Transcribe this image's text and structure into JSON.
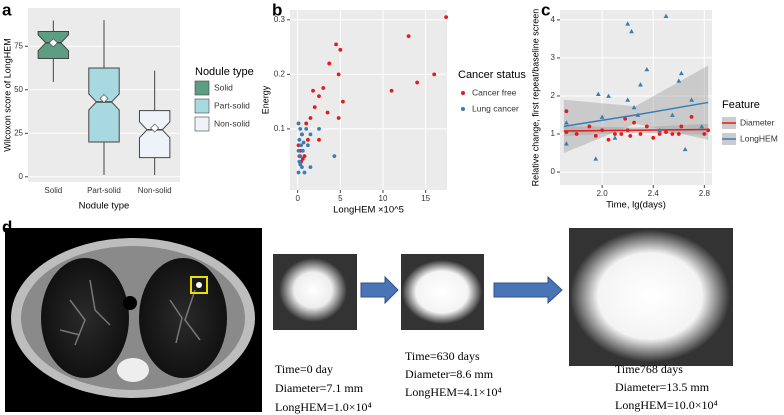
{
  "panel_labels": [
    "a",
    "b",
    "c",
    "d"
  ],
  "chart_data": [
    {
      "type": "box",
      "y_label": "Wilcoxon score of LongHEM",
      "x_label": "Nodule type",
      "legend_title": "Nodule type",
      "categories": [
        "Solid",
        "Part-solid",
        "Non-solid"
      ],
      "colors": [
        "#5c9e84",
        "#a8d8e0",
        "#eef3f9"
      ],
      "boxes": [
        {
          "min": 54.5,
          "q1": 68,
          "median": 77,
          "q3": 83.5,
          "max": 89.8,
          "mean": 77
        },
        {
          "min": 1,
          "q1": 20,
          "median": 43,
          "q3": 62.5,
          "max": 90,
          "mean": 45
        },
        {
          "min": 1,
          "q1": 11,
          "median": 27,
          "q3": 38,
          "max": 61,
          "mean": 28
        }
      ],
      "ylim": [
        -3,
        97
      ],
      "yticks": [
        0,
        25,
        50,
        75
      ],
      "grid": true
    },
    {
      "type": "scatter",
      "y_label": "Energy",
      "x_label": "LongHEM ×10^5",
      "legend_title": "Cancer status",
      "xlim": [
        -0.9,
        17.5
      ],
      "xticks": [
        0,
        5,
        10,
        15
      ],
      "ylim": [
        -0.012,
        0.318
      ],
      "yticks": [
        0.1,
        0.2,
        0.3
      ],
      "grid": true,
      "series": [
        {
          "name": "Cancer free",
          "color": "#e41a1c",
          "marker": "circle",
          "x": [
            17.4,
            13,
            16,
            14,
            11,
            4.5,
            5,
            3.7,
            4.8,
            2.5,
            3,
            1.8,
            2,
            3.5,
            5.3,
            4.8,
            1.5,
            1,
            0.5,
            0.3,
            0.2,
            0.8,
            0.4,
            1.2,
            2.5,
            0.1,
            0.6
          ],
          "values": [
            0.305,
            0.27,
            0.2,
            0.185,
            0.17,
            0.255,
            0.245,
            0.22,
            0.2,
            0.16,
            0.175,
            0.17,
            0.14,
            0.13,
            0.15,
            0.12,
            0.12,
            0.11,
            0.09,
            0.06,
            0.05,
            0.05,
            0.04,
            0.08,
            0.08,
            0.07,
            0.045
          ]
        },
        {
          "name": "Lung cancer",
          "color": "#377eb8",
          "marker": "circle",
          "x": [
            0.1,
            0.3,
            0.5,
            1,
            1.5,
            2.5,
            4.3,
            0.2,
            0.4,
            0.1,
            0.3,
            0.6,
            0.2,
            0.5,
            0.1,
            1.5,
            0.8,
            0.3,
            1.2,
            0.7
          ],
          "values": [
            0.11,
            0.1,
            0.09,
            0.1,
            0.09,
            0.1,
            0.05,
            0.08,
            0.07,
            0.06,
            0.05,
            0.06,
            0.04,
            0.03,
            0.02,
            0.03,
            0.02,
            0.035,
            0.07,
            0.075
          ]
        }
      ]
    },
    {
      "type": "scatter",
      "y_label": "Relative change, first repeat/baseline screen",
      "x_label": "Time, lg(days)",
      "legend_title": "Feature",
      "xlim": [
        1.67,
        2.86
      ],
      "xticks": [
        {
          "value": 2,
          "label": "2.0"
        },
        2.4,
        2.8
      ],
      "ylim": [
        -0.34,
        4.26
      ],
      "yticks": [
        0,
        1,
        2,
        3,
        4
      ],
      "grid": true,
      "series": [
        {
          "name": "Diameter",
          "color": "#e41a1c",
          "marker": "circle",
          "x": [
            1.72,
            1.72,
            1.9,
            1.95,
            2.0,
            2.05,
            2.1,
            2.15,
            2.2,
            2.22,
            2.25,
            2.3,
            2.35,
            2.4,
            2.45,
            2.5,
            2.55,
            2.6,
            2.62,
            2.7,
            2.8,
            2.83,
            1.8,
            2.18
          ],
          "values": [
            1.6,
            1.05,
            1.2,
            0.95,
            1.1,
            0.85,
            1.0,
            1.0,
            1.1,
            0.95,
            1.3,
            1.0,
            1.2,
            0.9,
            1.0,
            1.05,
            1.0,
            1.0,
            1.2,
            1.45,
            1.0,
            1.1,
            1.0,
            1.4
          ],
          "fit": {
            "x": [
              1.7,
              2.26,
              2.83
            ],
            "values": [
              1.08,
              1.1,
              1.12
            ],
            "lower": [
              0.95,
              1.03,
              0.97
            ],
            "upper": [
              1.21,
              1.17,
              1.27
            ]
          }
        },
        {
          "name": "LongHEM",
          "color": "#377eb8",
          "marker": "triangle",
          "x": [
            1.72,
            1.72,
            1.95,
            1.97,
            2.05,
            2.1,
            2.2,
            2.23,
            2.25,
            2.3,
            2.35,
            2.45,
            2.5,
            2.55,
            2.6,
            2.62,
            2.65,
            2.7,
            2.78,
            2.2,
            2.28,
            2.0
          ],
          "values": [
            0.75,
            1.3,
            0.35,
            2.05,
            2.0,
            0.9,
            3.9,
            3.7,
            1.7,
            2.3,
            2.7,
            1.1,
            4.1,
            1.5,
            2.4,
            2.6,
            0.6,
            1.9,
            1.2,
            1.9,
            1.5,
            1.45
          ],
          "fit": {
            "x": [
              1.7,
              2.26,
              2.83
            ],
            "values": [
              1.2,
              1.5,
              1.83
            ],
            "lower": [
              0.5,
              1.27,
              0.85
            ],
            "upper": [
              1.9,
              1.73,
              2.8
            ]
          }
        }
      ]
    }
  ],
  "panel_d": {
    "captions": [
      [
        "Time=0 day",
        "Diameter=7.1 mm",
        "LongHEM=1.0×10⁴"
      ],
      [
        "Time=630 days",
        "Diameter=8.6 mm",
        "LongHEM=4.1×10⁴"
      ],
      [
        "Time768 days",
        "Diameter=13.5 mm",
        "LongHEM=10.0×10⁴"
      ]
    ]
  }
}
